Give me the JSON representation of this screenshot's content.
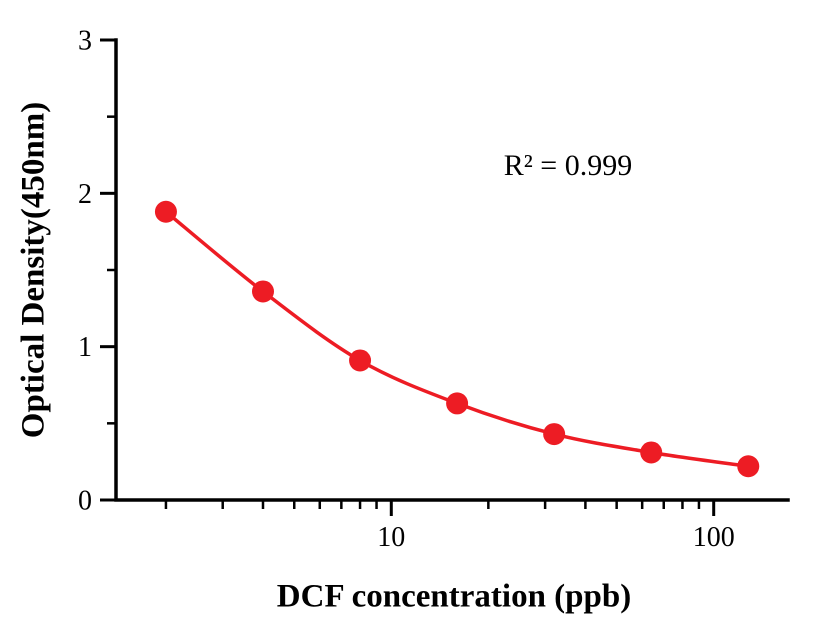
{
  "figure": {
    "background": "#ffffff"
  },
  "chart_data": {
    "type": "scatter",
    "title": "",
    "xlabel": "DCF concentration (ppb)",
    "ylabel": "Optical Density(450nm)",
    "annotation": "R² = 0.999",
    "x_scale": "log",
    "x": [
      2,
      4,
      8,
      16,
      32,
      64,
      128
    ],
    "y": [
      1.88,
      1.36,
      0.91,
      0.63,
      0.43,
      0.31,
      0.22
    ],
    "xlim": [
      1.4,
      170
    ],
    "ylim": [
      0,
      3
    ],
    "x_major_ticks": [
      10,
      100
    ],
    "x_tick_labels": [
      "10",
      "100"
    ],
    "y_major_ticks": [
      0,
      1,
      2,
      3
    ],
    "y_tick_labels": [
      "0",
      "1",
      "2",
      "3"
    ],
    "y_minor_step": 0.5,
    "marker_color": "#ed1c24",
    "line_color": "#ed1c24",
    "axis_color": "#000000",
    "grid": false,
    "legend": "none"
  }
}
